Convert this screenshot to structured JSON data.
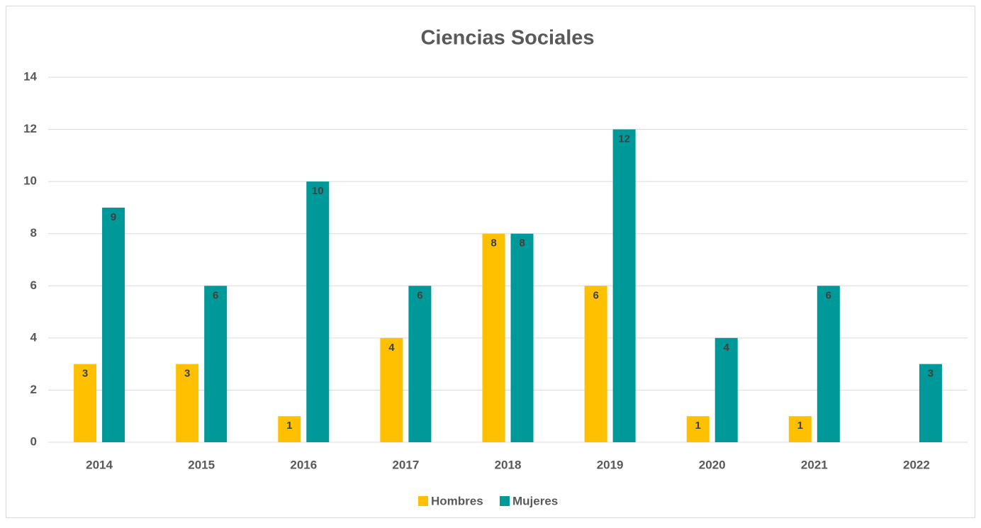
{
  "chart_data": {
    "type": "bar",
    "title": "Ciencias Sociales",
    "categories": [
      "2014",
      "2015",
      "2016",
      "2017",
      "2018",
      "2019",
      "2020",
      "2021",
      "2022"
    ],
    "series": [
      {
        "name": "Hombres",
        "color": "#ffc000",
        "values": [
          3,
          3,
          1,
          4,
          8,
          6,
          1,
          1,
          null
        ]
      },
      {
        "name": "Mujeres",
        "color": "#009999",
        "values": [
          9,
          6,
          10,
          6,
          8,
          12,
          4,
          6,
          3
        ]
      }
    ],
    "ylim": [
      0,
      14
    ],
    "yticks": [
      0,
      2,
      4,
      6,
      8,
      10,
      12,
      14
    ],
    "grid": true,
    "legend": "bottom"
  }
}
